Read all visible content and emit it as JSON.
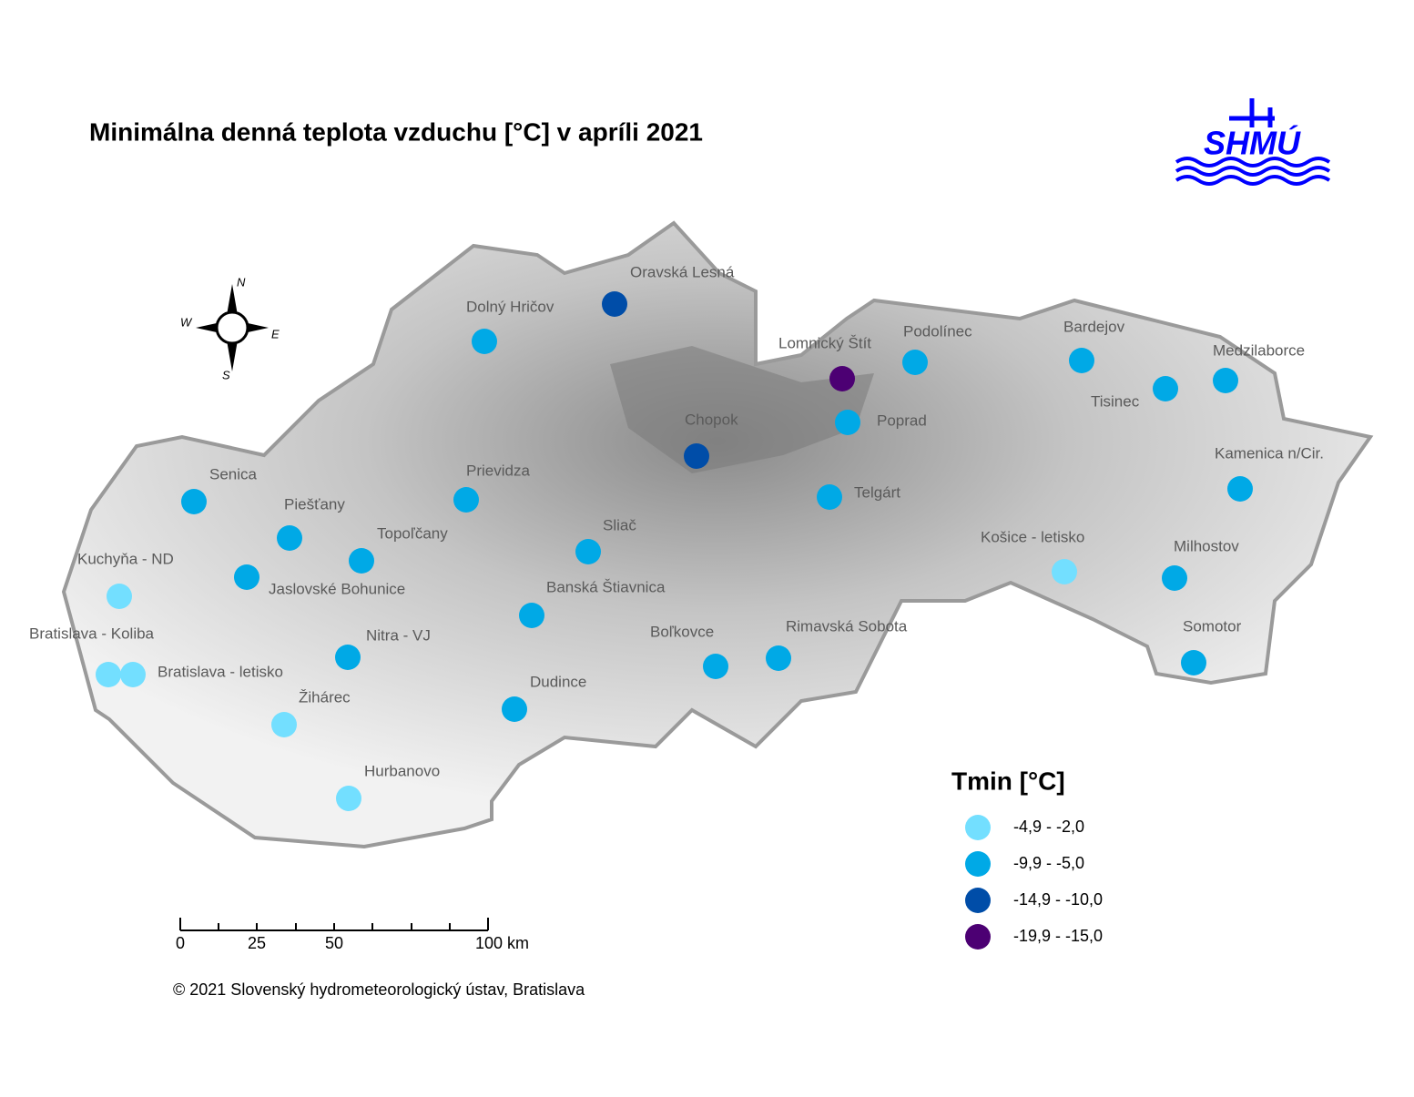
{
  "title": "Minimálna denná teplota vzduchu [°C] v apríli 2021",
  "logo": "SHMÚ",
  "compass": {
    "n": "N",
    "w": "W",
    "e": "E",
    "s": "S"
  },
  "stations": [
    {
      "name": "Oravská Lesná",
      "color": "#004DA8"
    },
    {
      "name": "Dolný Hričov",
      "color": "#00A9E6"
    },
    {
      "name": "Lomnický Štít",
      "color": "#4C0073"
    },
    {
      "name": "Podolínec",
      "color": "#00A9E6"
    },
    {
      "name": "Bardejov",
      "color": "#00A9E6"
    },
    {
      "name": "Medzilaborce",
      "color": "#00A9E6"
    },
    {
      "name": "Tisinec",
      "color": "#00A9E6"
    },
    {
      "name": "Poprad",
      "color": "#00A9E6"
    },
    {
      "name": "Chopok",
      "color": "#004DA8"
    },
    {
      "name": "Kamenica n/Cir.",
      "color": "#00A9E6"
    },
    {
      "name": "Telgárt",
      "color": "#00A9E6"
    },
    {
      "name": "Senica",
      "color": "#00A9E6"
    },
    {
      "name": "Prievidza",
      "color": "#00A9E6"
    },
    {
      "name": "Piešťany",
      "color": "#00A9E6"
    },
    {
      "name": "Topoľčany",
      "color": "#00A9E6"
    },
    {
      "name": "Sliač",
      "color": "#00A9E6"
    },
    {
      "name": "Košice - letisko",
      "color": "#73DFFF"
    },
    {
      "name": "Milhostov",
      "color": "#00A9E6"
    },
    {
      "name": "Jaslovské Bohunice",
      "color": "#00A9E6"
    },
    {
      "name": "Kuchyňa - ND",
      "color": "#73DFFF"
    },
    {
      "name": "Banská Štiavnica",
      "color": "#00A9E6"
    },
    {
      "name": "Bratislava - Koliba",
      "color": "#73DFFF"
    },
    {
      "name": "Bratislava - letisko",
      "color": "#73DFFF"
    },
    {
      "name": "Nitra - VJ",
      "color": "#00A9E6"
    },
    {
      "name": "Boľkovce",
      "color": "#00A9E6"
    },
    {
      "name": "Rimavská Sobota",
      "color": "#00A9E6"
    },
    {
      "name": "Somotor",
      "color": "#00A9E6"
    },
    {
      "name": "Dudince",
      "color": "#00A9E6"
    },
    {
      "name": "Žihárec",
      "color": "#73DFFF"
    },
    {
      "name": "Hurbanovo",
      "color": "#73DFFF"
    }
  ],
  "legend": {
    "title": "Tmin [°C]",
    "items": [
      {
        "label": "-4,9 - -2,0",
        "color": "#73DFFF"
      },
      {
        "label": "-9,9 - -5,0",
        "color": "#00A9E6"
      },
      {
        "label": "-14,9 - -10,0",
        "color": "#004DA8"
      },
      {
        "label": "-19,9 - -15,0",
        "color": "#4C0073"
      }
    ]
  },
  "scale_bar": {
    "labels": [
      "0",
      "25",
      "50",
      "100 km"
    ]
  },
  "copyright": "© 2021 Slovenský hydrometeorologický ústav, Bratislava"
}
